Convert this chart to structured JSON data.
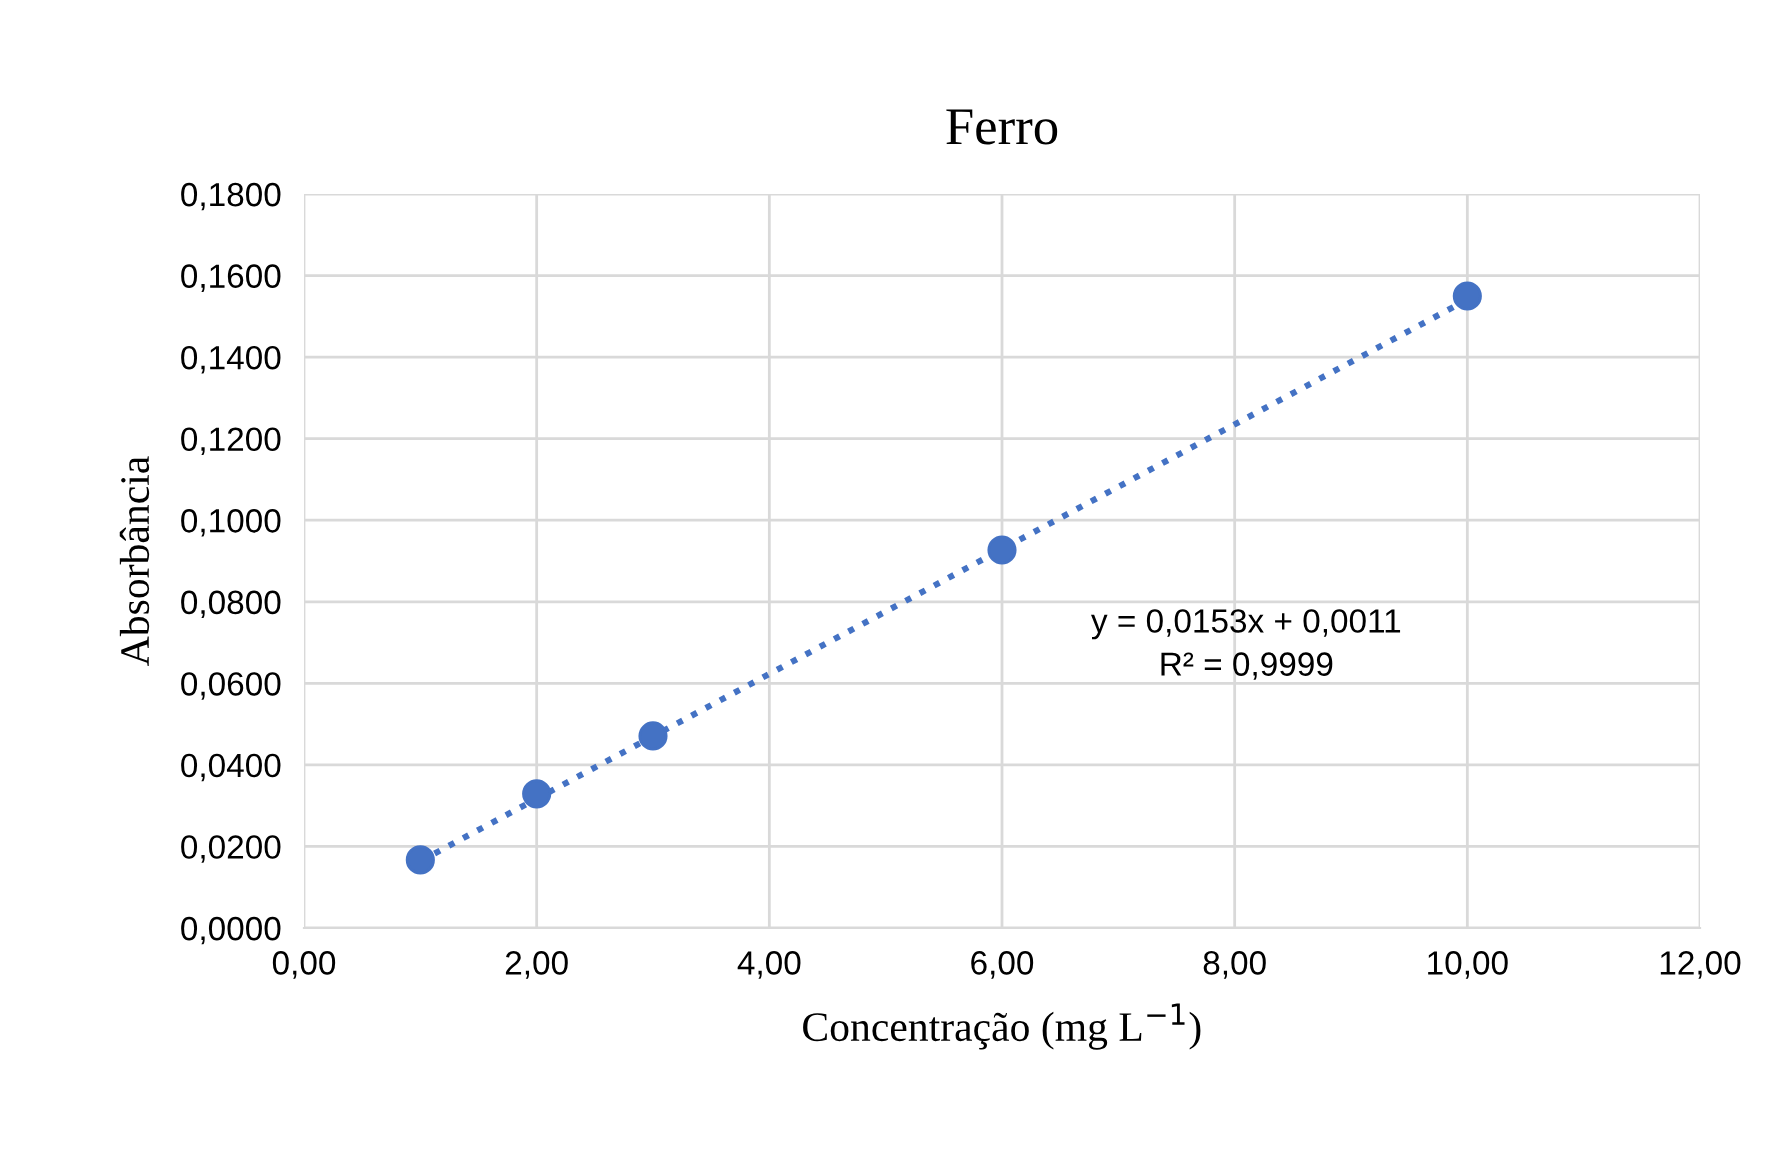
{
  "chart_data": {
    "type": "scatter",
    "title": "Ferro",
    "xlabel": "Concentração (mg L$^{−1}$)",
    "ylabel": "Absorbância",
    "series": [
      {
        "color": "#4472c4",
        "marker": "circle",
        "x": [
          1,
          2,
          3,
          6,
          10
        ],
        "values": [
          0.0167,
          0.0329,
          0.0471,
          0.0927,
          0.155
        ]
      },
      {
        "type": "line",
        "color": "#4472c4",
        "marker": "none",
        "line_style": "dotted",
        "x": [
          1,
          10
        ],
        "values": [
          0.0164,
          0.1541
        ]
      }
    ],
    "annotations": [
      "y = 0,0153x + 0,0011\nR² = 0,9999"
    ],
    "xlim": [
      0,
      12
    ],
    "xticks": [
      {
        "value": 0,
        "label": "0,00"
      },
      {
        "value": 2,
        "label": "2,00"
      },
      {
        "value": 4,
        "label": "4,00"
      },
      {
        "value": 6,
        "label": "6,00"
      },
      {
        "value": 8,
        "label": "8,00"
      },
      {
        "value": 10,
        "label": "10,00"
      },
      {
        "value": 12,
        "label": "12,00"
      }
    ],
    "ylim": [
      0,
      0.18
    ],
    "yticks": [
      {
        "value": 0,
        "label": "0,0000"
      },
      {
        "value": 0.02,
        "label": "0,0200"
      },
      {
        "value": 0.04,
        "label": "0,0400"
      },
      {
        "value": 0.06,
        "label": "0,0600"
      },
      {
        "value": 0.08,
        "label": "0,0800"
      },
      {
        "value": 0.1,
        "label": "0,1000"
      },
      {
        "value": 0.12,
        "label": "0,1200"
      },
      {
        "value": 0.14,
        "label": "0,1400"
      },
      {
        "value": 0.16,
        "label": "0,1600"
      },
      {
        "value": 0.18,
        "label": "0,1800"
      }
    ],
    "grid": true,
    "legend": false
  }
}
